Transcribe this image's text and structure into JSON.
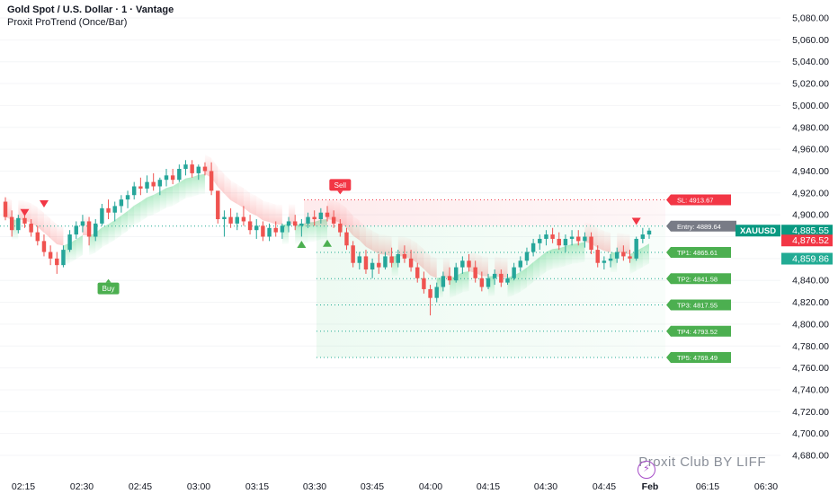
{
  "header": {
    "title": "Gold Spot / U.S. Dollar · 1 · Vantage",
    "indicator": "Proxit ProTrend (Once/Bar)"
  },
  "watermark": {
    "text": "Proxit Club BY LIFF",
    "icon": "lightning-bolt-icon"
  },
  "colors": {
    "up": "#26a69a",
    "down": "#ef5350",
    "bull_cloud": "#22c55e",
    "bear_cloud": "#f87171",
    "signal_buy": "#4caf50",
    "signal_sell": "#f23645",
    "entry_gray": "#787b86",
    "symbol_teal": "#089981"
  },
  "chart_data": {
    "type": "candlestick",
    "symbol": "XAUUSD",
    "ylim": [
      4675,
      5090
    ],
    "y_ticks": [
      "4,680.00",
      "4,700.00",
      "4,720.00",
      "4,740.00",
      "4,760.00",
      "4,780.00",
      "4,800.00",
      "4,820.00",
      "4,840.00",
      "4,860.00",
      "4,880.00",
      "4,900.00",
      "4,920.00",
      "4,940.00",
      "4,960.00",
      "4,980.00",
      "5,000.00",
      "5,020.00",
      "5,040.00",
      "5,060.00",
      "5,080.00"
    ],
    "x_ticks": [
      "02:15",
      "02:30",
      "02:45",
      "03:00",
      "03:15",
      "03:30",
      "03:45",
      "04:00",
      "04:15",
      "04:30",
      "04:45",
      "Feb",
      "06:15",
      "06:30"
    ],
    "price_labels": [
      {
        "text": "4,885.55",
        "value": 4885.55,
        "tag": "XAUUSD",
        "color": "#089981"
      },
      {
        "text": "4,876.52",
        "value": 4876.52,
        "color": "#f23645"
      },
      {
        "text": "4,859.86",
        "value": 4859.86,
        "color": "#22ab94"
      }
    ],
    "trade_levels": [
      {
        "text": "SL: 4913.67",
        "value": 4913.67,
        "kind": "sl"
      },
      {
        "text": "Entry: 4889.64",
        "value": 4889.64,
        "kind": "entry"
      },
      {
        "text": "TP1: 4865.61",
        "value": 4865.61,
        "kind": "tp"
      },
      {
        "text": "TP2: 4841.58",
        "value": 4841.58,
        "kind": "tp"
      },
      {
        "text": "TP3: 4817.55",
        "value": 4817.55,
        "kind": "tp"
      },
      {
        "text": "TP4: 4793.52",
        "value": 4793.52,
        "kind": "tp"
      },
      {
        "text": "TP5: 4769.49",
        "value": 4769.49,
        "kind": "tp"
      }
    ],
    "signals": [
      {
        "text": "Buy",
        "kind": "buy",
        "bar": 16,
        "value": 4838
      },
      {
        "text": "Sell",
        "kind": "sell",
        "bar": 52,
        "value": 4922
      }
    ],
    "markers": [
      {
        "bar": 3,
        "value": 4902,
        "dir": "down"
      },
      {
        "bar": 6,
        "value": 4910,
        "dir": "down"
      },
      {
        "bar": 46,
        "value": 4873,
        "dir": "up"
      },
      {
        "bar": 50,
        "value": 4874,
        "dir": "up"
      },
      {
        "bar": 98,
        "value": 4894,
        "dir": "down"
      }
    ],
    "candles": [
      [
        4912,
        4916,
        4895,
        4898
      ],
      [
        4898,
        4904,
        4880,
        4886
      ],
      [
        4886,
        4900,
        4883,
        4897
      ],
      [
        4897,
        4904,
        4888,
        4892
      ],
      [
        4892,
        4896,
        4880,
        4884
      ],
      [
        4884,
        4890,
        4872,
        4876
      ],
      [
        4876,
        4882,
        4862,
        4866
      ],
      [
        4866,
        4872,
        4854,
        4860
      ],
      [
        4860,
        4866,
        4846,
        4854
      ],
      [
        4854,
        4872,
        4852,
        4868
      ],
      [
        4868,
        4886,
        4866,
        4882
      ],
      [
        4882,
        4894,
        4878,
        4890
      ],
      [
        4890,
        4900,
        4884,
        4894
      ],
      [
        4894,
        4898,
        4872,
        4880
      ],
      [
        4880,
        4896,
        4876,
        4892
      ],
      [
        4892,
        4910,
        4890,
        4906
      ],
      [
        4906,
        4914,
        4896,
        4902
      ],
      [
        4902,
        4912,
        4894,
        4908
      ],
      [
        4908,
        4918,
        4902,
        4914
      ],
      [
        4914,
        4922,
        4906,
        4918
      ],
      [
        4918,
        4930,
        4914,
        4926
      ],
      [
        4926,
        4934,
        4918,
        4924
      ],
      [
        4924,
        4936,
        4920,
        4930
      ],
      [
        4930,
        4938,
        4922,
        4926
      ],
      [
        4926,
        4934,
        4918,
        4932
      ],
      [
        4932,
        4942,
        4926,
        4936
      ],
      [
        4936,
        4942,
        4928,
        4932
      ],
      [
        4932,
        4946,
        4930,
        4942
      ],
      [
        4942,
        4950,
        4936,
        4946
      ],
      [
        4946,
        4950,
        4934,
        4938
      ],
      [
        4938,
        4946,
        4932,
        4944
      ],
      [
        4944,
        4948,
        4936,
        4940
      ],
      [
        4940,
        4948,
        4918,
        4922
      ],
      [
        4922,
        4920,
        4892,
        4896
      ],
      [
        4896,
        4904,
        4880,
        4898
      ],
      [
        4898,
        4906,
        4888,
        4892
      ],
      [
        4892,
        4902,
        4886,
        4898
      ],
      [
        4898,
        4908,
        4890,
        4894
      ],
      [
        4894,
        4900,
        4882,
        4886
      ],
      [
        4886,
        4896,
        4878,
        4890
      ],
      [
        4890,
        4894,
        4876,
        4880
      ],
      [
        4880,
        4892,
        4876,
        4888
      ],
      [
        4888,
        4894,
        4880,
        4884
      ],
      [
        4884,
        4892,
        4878,
        4890
      ],
      [
        4890,
        4898,
        4884,
        4894
      ],
      [
        4894,
        4900,
        4886,
        4890
      ],
      [
        4890,
        4896,
        4880,
        4892
      ],
      [
        4892,
        4902,
        4888,
        4898
      ],
      [
        4898,
        4904,
        4890,
        4896
      ],
      [
        4896,
        4906,
        4892,
        4902
      ],
      [
        4902,
        4908,
        4894,
        4898
      ],
      [
        4898,
        4904,
        4888,
        4892
      ],
      [
        4892,
        4896,
        4880,
        4884
      ],
      [
        4884,
        4888,
        4868,
        4872
      ],
      [
        4872,
        4876,
        4852,
        4856
      ],
      [
        4856,
        4866,
        4850,
        4862
      ],
      [
        4862,
        4868,
        4846,
        4850
      ],
      [
        4850,
        4860,
        4842,
        4856
      ],
      [
        4856,
        4864,
        4846,
        4852
      ],
      [
        4852,
        4866,
        4850,
        4862
      ],
      [
        4862,
        4870,
        4852,
        4856
      ],
      [
        4856,
        4868,
        4852,
        4864
      ],
      [
        4864,
        4872,
        4856,
        4860
      ],
      [
        4860,
        4868,
        4848,
        4852
      ],
      [
        4852,
        4856,
        4838,
        4842
      ],
      [
        4842,
        4848,
        4828,
        4832
      ],
      [
        4832,
        4836,
        4808,
        4824
      ],
      [
        4824,
        4838,
        4820,
        4834
      ],
      [
        4834,
        4848,
        4830,
        4844
      ],
      [
        4844,
        4852,
        4836,
        4840
      ],
      [
        4840,
        4856,
        4838,
        4852
      ],
      [
        4852,
        4862,
        4846,
        4858
      ],
      [
        4858,
        4864,
        4848,
        4852
      ],
      [
        4852,
        4858,
        4838,
        4842
      ],
      [
        4842,
        4848,
        4830,
        4834
      ],
      [
        4834,
        4846,
        4832,
        4842
      ],
      [
        4842,
        4850,
        4836,
        4846
      ],
      [
        4846,
        4850,
        4834,
        4838
      ],
      [
        4838,
        4846,
        4836,
        4842
      ],
      [
        4842,
        4856,
        4840,
        4852
      ],
      [
        4852,
        4862,
        4848,
        4858
      ],
      [
        4858,
        4870,
        4854,
        4866
      ],
      [
        4866,
        4878,
        4862,
        4874
      ],
      [
        4874,
        4882,
        4868,
        4878
      ],
      [
        4878,
        4886,
        4872,
        4882
      ],
      [
        4882,
        4888,
        4874,
        4878
      ],
      [
        4878,
        4884,
        4868,
        4872
      ],
      [
        4872,
        4882,
        4866,
        4878
      ],
      [
        4878,
        4886,
        4872,
        4880
      ],
      [
        4880,
        4886,
        4872,
        4876
      ],
      [
        4876,
        4884,
        4870,
        4880
      ],
      [
        4880,
        4884,
        4864,
        4868
      ],
      [
        4868,
        4872,
        4852,
        4856
      ],
      [
        4856,
        4862,
        4850,
        4858
      ],
      [
        4858,
        4864,
        4852,
        4860
      ],
      [
        4860,
        4870,
        4856,
        4866
      ],
      [
        4866,
        4872,
        4858,
        4862
      ],
      [
        4862,
        4868,
        4856,
        4860
      ],
      [
        4860,
        4880,
        4858,
        4878
      ],
      [
        4878,
        4888,
        4874,
        4882
      ],
      [
        4882,
        4888,
        4878,
        4885.55
      ]
    ]
  }
}
